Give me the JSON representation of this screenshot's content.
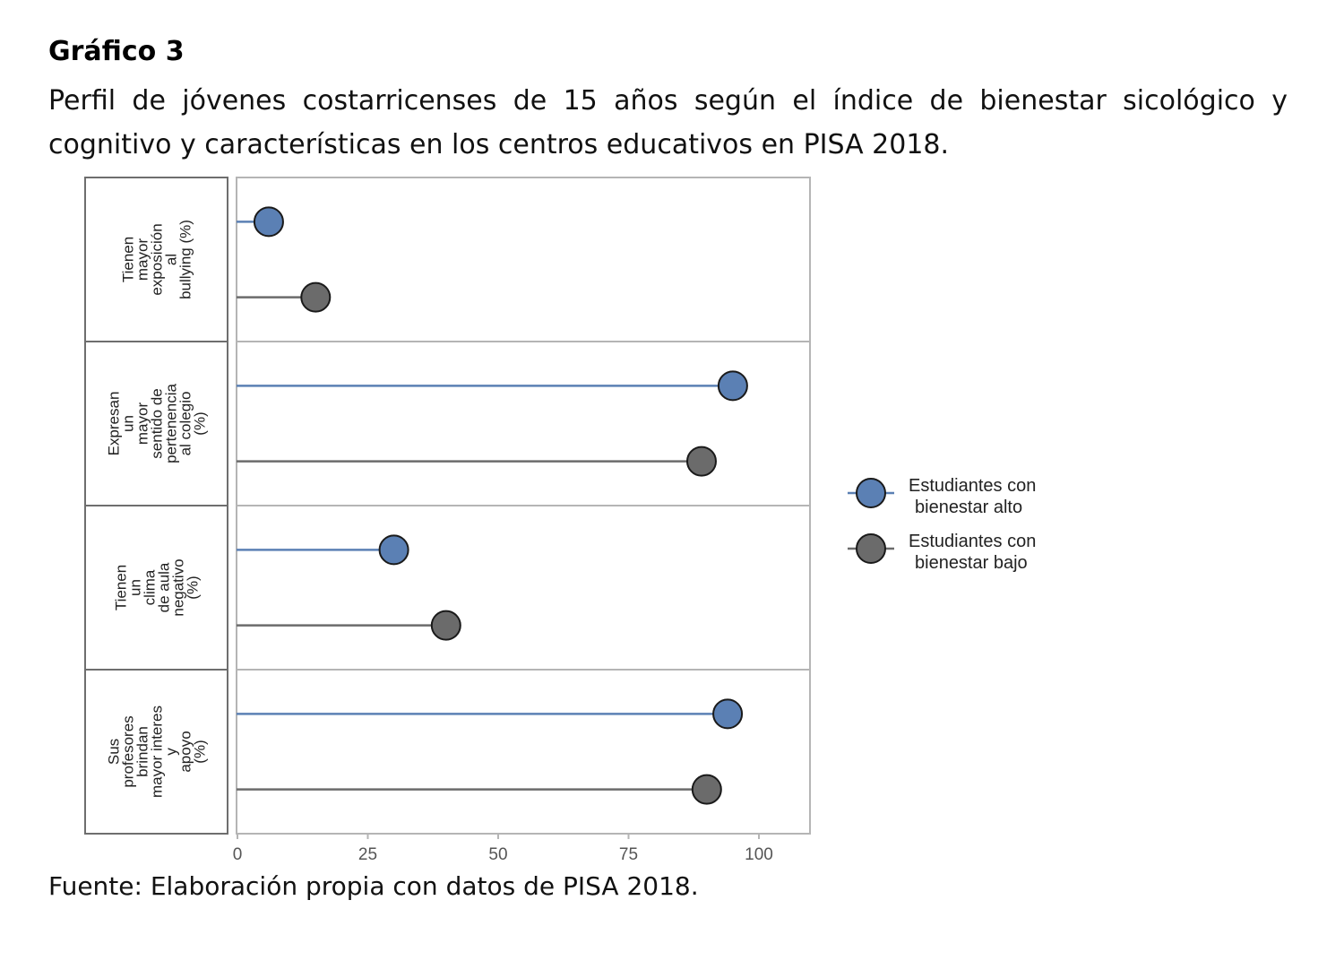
{
  "heading": "Gráfico 3",
  "subtitle": "Perfil de jóvenes costarricenses de 15 años según el índice de bienestar sicológico y cognitivo y características en los centros educativos en PISA 2018.",
  "source": "Fuente: Elaboración propia con datos de PISA 2018.",
  "colors": {
    "alto": "#5b80b4",
    "bajo": "#6b6b6b",
    "border": "#b5b5b5"
  },
  "chart_data": {
    "type": "lollipop",
    "xlim": [
      0,
      110
    ],
    "x_ticks": [
      "0",
      "25",
      "50",
      "75",
      "100"
    ],
    "x_tick_values": [
      0,
      25,
      50,
      75,
      100
    ],
    "legend_position": "right",
    "series": [
      {
        "name": [
          "Estudiantes con",
          "bienestar alto"
        ],
        "values": [
          6,
          95,
          30,
          94
        ]
      },
      {
        "name": [
          "Estudiantes con",
          "bienestar bajo"
        ],
        "values": [
          15,
          89,
          40,
          90
        ]
      }
    ],
    "panels": [
      {
        "label": [
          "Tienen",
          "mayor",
          "exposición",
          "al",
          "bullying (%)"
        ]
      },
      {
        "label": [
          "Expresan",
          "un",
          "mayor",
          "sentido de",
          "pertenencia",
          "al colegio",
          "(%)"
        ]
      },
      {
        "label": [
          "Tienen",
          "un",
          "clima",
          "de aula",
          "negativo",
          "(%)"
        ]
      },
      {
        "label": [
          "Sus",
          "profesores",
          "brindan",
          "mayor interes",
          "y",
          "apoyo",
          "(%)"
        ]
      }
    ]
  }
}
